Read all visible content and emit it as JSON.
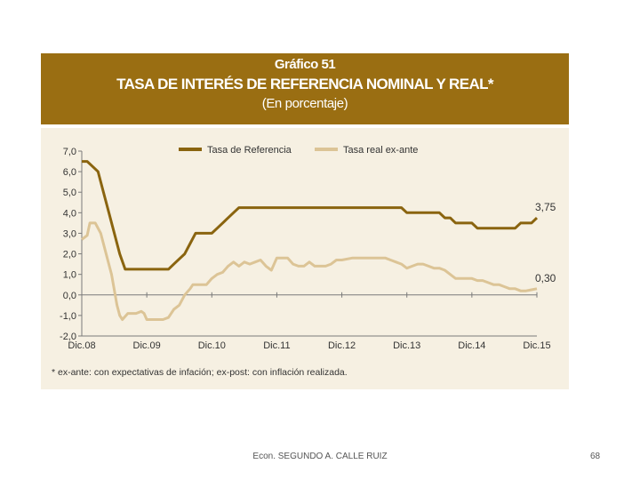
{
  "title": {
    "line1": "Gráfico 51",
    "line2": "TASA DE INTERÉS DE REFERENCIA NOMINAL Y REAL*",
    "line3": "(En porcentaje)"
  },
  "footnote": "* ex-ante: con expectativas de infación; ex-post: con inflación realizada.",
  "footer": {
    "author": "Econ. SEGUNDO A. CALLE RUIZ",
    "page": "68"
  },
  "colors": {
    "header_bg": "#9a6e12",
    "panel_bg": "#f6f0e2",
    "nominal": "#8a640f",
    "real": "#dcc496"
  },
  "chart_data": {
    "type": "line",
    "ylim": [
      -2.0,
      7.0
    ],
    "y_ticks": [
      "7,0",
      "6,0",
      "5,0",
      "4,0",
      "3,0",
      "2,0",
      "1,0",
      "0,0",
      "-1,0",
      "-2,0"
    ],
    "y_tick_values": [
      7,
      6,
      5,
      4,
      3,
      2,
      1,
      0,
      -1,
      -2
    ],
    "x_tick_labels": [
      "Dic.08",
      "Dic.09",
      "Dic.10",
      "Dic.11",
      "Dic.12",
      "Dic.13",
      "Dic.14",
      "Dic.15"
    ],
    "x_tick_values": [
      0,
      12,
      24,
      36,
      48,
      60,
      72,
      84
    ],
    "grid": false,
    "legend": "top",
    "series": [
      {
        "name": "Tasa de Referencia",
        "end_label": "3,75",
        "points": [
          [
            0,
            6.5
          ],
          [
            1,
            6.5
          ],
          [
            2,
            6.25
          ],
          [
            3,
            6.0
          ],
          [
            4,
            5.0
          ],
          [
            5,
            4.0
          ],
          [
            6,
            3.0
          ],
          [
            7,
            2.0
          ],
          [
            8,
            1.25
          ],
          [
            9,
            1.25
          ],
          [
            10,
            1.25
          ],
          [
            11,
            1.25
          ],
          [
            12,
            1.25
          ],
          [
            13,
            1.25
          ],
          [
            14,
            1.25
          ],
          [
            15,
            1.25
          ],
          [
            16,
            1.25
          ],
          [
            17,
            1.5
          ],
          [
            18,
            1.75
          ],
          [
            19,
            2.0
          ],
          [
            20,
            2.5
          ],
          [
            21,
            3.0
          ],
          [
            22,
            3.0
          ],
          [
            23,
            3.0
          ],
          [
            24,
            3.0
          ],
          [
            25,
            3.25
          ],
          [
            26,
            3.5
          ],
          [
            27,
            3.75
          ],
          [
            28,
            4.0
          ],
          [
            29,
            4.25
          ],
          [
            30,
            4.25
          ],
          [
            36,
            4.25
          ],
          [
            42,
            4.25
          ],
          [
            48,
            4.25
          ],
          [
            54,
            4.25
          ],
          [
            59,
            4.25
          ],
          [
            60,
            4.0
          ],
          [
            66,
            4.0
          ],
          [
            67,
            3.75
          ],
          [
            68,
            3.75
          ],
          [
            69,
            3.5
          ],
          [
            72,
            3.5
          ],
          [
            73,
            3.25
          ],
          [
            76,
            3.25
          ],
          [
            80,
            3.25
          ],
          [
            81,
            3.5
          ],
          [
            83,
            3.5
          ],
          [
            84,
            3.75
          ]
        ]
      },
      {
        "name": "Tasa real ex-ante",
        "end_label": "0,30",
        "points": [
          [
            0,
            2.7
          ],
          [
            1,
            2.9
          ],
          [
            1.5,
            3.5
          ],
          [
            2.5,
            3.5
          ],
          [
            3.5,
            3.0
          ],
          [
            4.5,
            2.0
          ],
          [
            5.5,
            1.0
          ],
          [
            6.5,
            -0.5
          ],
          [
            7,
            -1.0
          ],
          [
            7.5,
            -1.2
          ],
          [
            8.5,
            -0.9
          ],
          [
            10,
            -0.9
          ],
          [
            11,
            -0.8
          ],
          [
            11.5,
            -0.9
          ],
          [
            12,
            -1.2
          ],
          [
            13,
            -1.2
          ],
          [
            15,
            -1.2
          ],
          [
            16,
            -1.1
          ],
          [
            17,
            -0.7
          ],
          [
            18,
            -0.5
          ],
          [
            19,
            0.0
          ],
          [
            20,
            0.3
          ],
          [
            20.5,
            0.5
          ],
          [
            22,
            0.5
          ],
          [
            23,
            0.5
          ],
          [
            24,
            0.8
          ],
          [
            25,
            1.0
          ],
          [
            26,
            1.1
          ],
          [
            27,
            1.4
          ],
          [
            28,
            1.6
          ],
          [
            29,
            1.4
          ],
          [
            30,
            1.6
          ],
          [
            31,
            1.5
          ],
          [
            32,
            1.6
          ],
          [
            33,
            1.7
          ],
          [
            34,
            1.4
          ],
          [
            35,
            1.2
          ],
          [
            36,
            1.8
          ],
          [
            37,
            1.8
          ],
          [
            38,
            1.8
          ],
          [
            39,
            1.5
          ],
          [
            40,
            1.4
          ],
          [
            41,
            1.4
          ],
          [
            42,
            1.6
          ],
          [
            43,
            1.4
          ],
          [
            44,
            1.4
          ],
          [
            45,
            1.4
          ],
          [
            46,
            1.5
          ],
          [
            47,
            1.7
          ],
          [
            48,
            1.7
          ],
          [
            50,
            1.8
          ],
          [
            52,
            1.8
          ],
          [
            54,
            1.8
          ],
          [
            56,
            1.8
          ],
          [
            57,
            1.7
          ],
          [
            58,
            1.6
          ],
          [
            59,
            1.5
          ],
          [
            60,
            1.3
          ],
          [
            61,
            1.4
          ],
          [
            62,
            1.5
          ],
          [
            63,
            1.5
          ],
          [
            64,
            1.4
          ],
          [
            65,
            1.3
          ],
          [
            66,
            1.3
          ],
          [
            67,
            1.2
          ],
          [
            68,
            1.0
          ],
          [
            69,
            0.8
          ],
          [
            70,
            0.8
          ],
          [
            71,
            0.8
          ],
          [
            72,
            0.8
          ],
          [
            73,
            0.7
          ],
          [
            74,
            0.7
          ],
          [
            75,
            0.6
          ],
          [
            76,
            0.5
          ],
          [
            77,
            0.5
          ],
          [
            78,
            0.4
          ],
          [
            79,
            0.3
          ],
          [
            80,
            0.3
          ],
          [
            81,
            0.2
          ],
          [
            82,
            0.2
          ],
          [
            83,
            0.25
          ],
          [
            84,
            0.3
          ]
        ]
      }
    ]
  }
}
